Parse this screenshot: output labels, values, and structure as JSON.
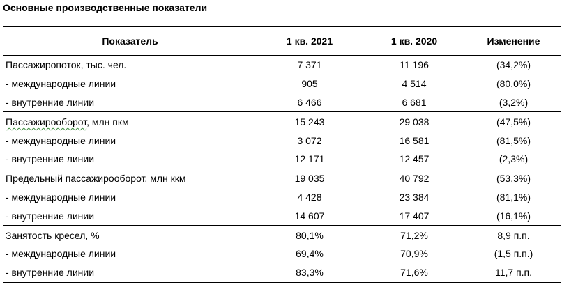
{
  "title": "Основные производственные показатели",
  "table": {
    "headers": [
      "Показатель",
      "1 кв. 2021",
      "1 кв. 2020",
      "Изменение"
    ],
    "rows": [
      {
        "label": "Пассажиропоток, тыс. чел.",
        "v2021": "7 371",
        "v2020": "11 196",
        "change": "(34,2%)",
        "group_start": true
      },
      {
        "label": "- международные линии",
        "v2021": "905",
        "v2020": "4 514",
        "change": "(80,0%)",
        "group_start": false
      },
      {
        "label": "- внутренние линии",
        "v2021": "6 466",
        "v2020": "6 681",
        "change": "(3,2%)",
        "group_start": false
      },
      {
        "label_parts": [
          "Пассажирооборот",
          ", млн пкм"
        ],
        "v2021": "15 243",
        "v2020": "29 038",
        "change": "(47,5%)",
        "group_start": true
      },
      {
        "label": "- международные линии",
        "v2021": "3 072",
        "v2020": "16 581",
        "change": "(81,5%)",
        "group_start": false
      },
      {
        "label": "- внутренние линии",
        "v2021": "12 171",
        "v2020": "12 457",
        "change": "(2,3%)",
        "group_start": false
      },
      {
        "label": "Предельный пассажирооборот, млн ккм",
        "v2021": "19 035",
        "v2020": "40 792",
        "change": "(53,3%)",
        "group_start": true
      },
      {
        "label": "- международные линии",
        "v2021": "4 428",
        "v2020": "23 384",
        "change": "(81,1%)",
        "group_start": false
      },
      {
        "label": "- внутренние линии",
        "v2021": "14 607",
        "v2020": "17 407",
        "change": "(16,1%)",
        "group_start": false
      },
      {
        "label": "Занятость кресел, %",
        "v2021": "80,1%",
        "v2020": "71,2%",
        "change": "8,9 п.п.",
        "group_start": true
      },
      {
        "label": "- международные линии",
        "v2021": "69,4%",
        "v2020": "70,9%",
        "change": "(1,5 п.п.)",
        "group_start": false
      },
      {
        "label": "- внутренние линии",
        "v2021": "83,3%",
        "v2020": "71,6%",
        "change": "11,7 п.п.",
        "group_start": false
      }
    ]
  }
}
